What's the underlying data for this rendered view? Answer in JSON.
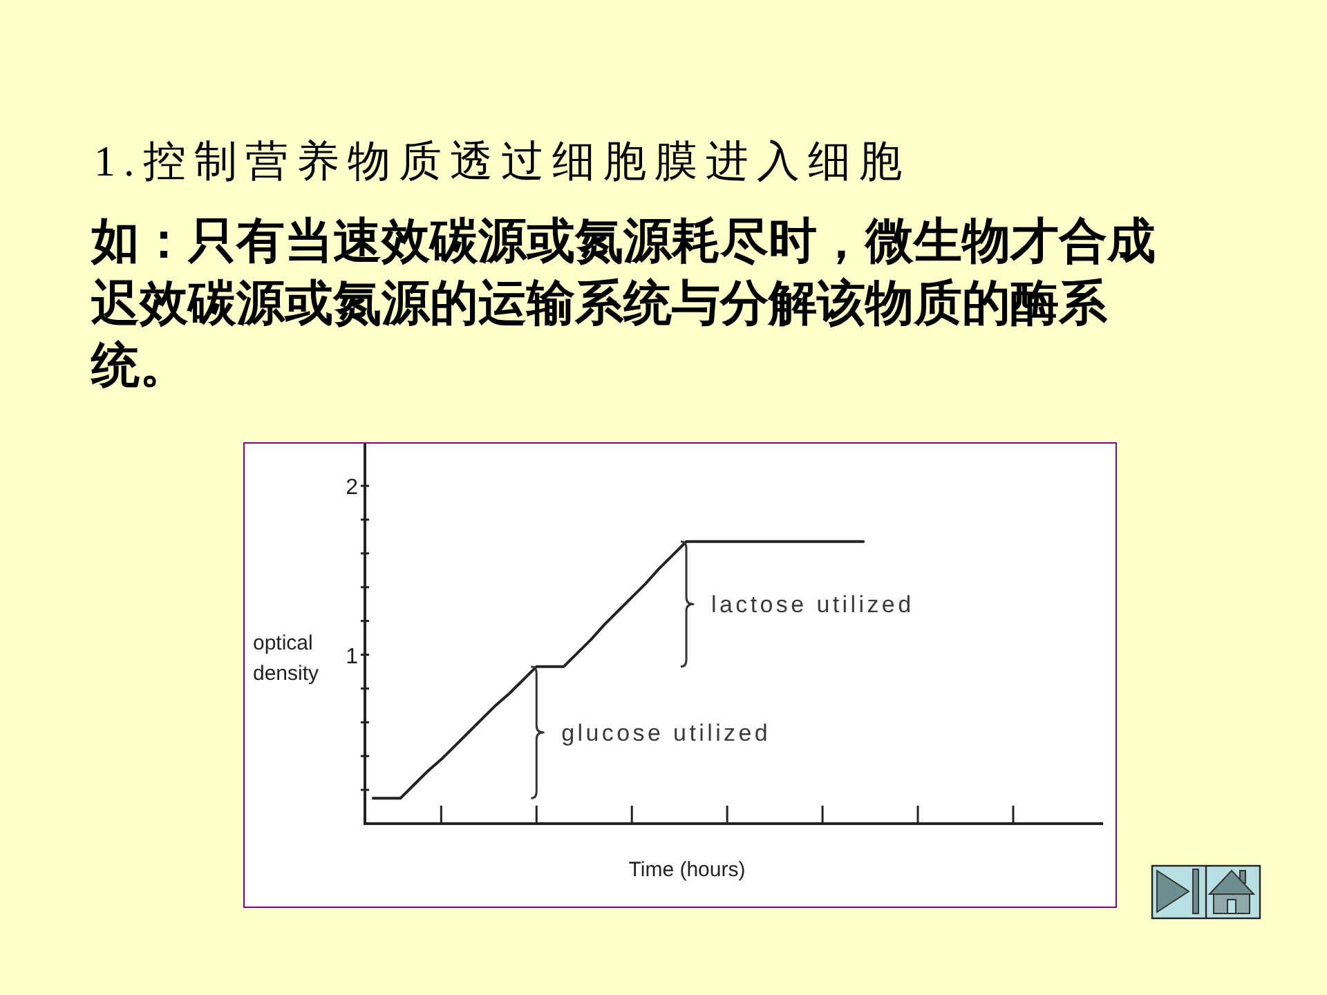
{
  "chart_data": {
    "type": "line",
    "title": "1.控制营养物质透过细胞膜进入细胞",
    "subtitle": "如：只有当速效碳源或氮源耗尽时，微生物才合成迟效碳源或氮源的运输系统与分解该物质的酶系统。",
    "xlabel": "Time (hours)",
    "ylabel": "optical density",
    "categories": [
      null,
      null,
      null,
      null,
      null,
      null,
      null,
      null,
      null,
      null,
      null,
      null,
      null,
      null,
      null,
      null,
      null,
      null,
      null,
      null,
      null,
      null,
      null,
      null,
      null,
      null,
      null,
      null,
      null,
      null,
      null,
      null,
      null,
      null,
      null,
      null,
      null,
      null,
      null,
      null,
      null,
      null,
      null,
      null,
      null,
      null,
      null,
      null,
      null,
      null,
      null,
      null,
      null,
      null
    ],
    "values": [
      0.15,
      0.15,
      0.15,
      0.23,
      0.31,
      0.38,
      0.46,
      0.54,
      0.62,
      0.7,
      0.77,
      0.85,
      0.93,
      0.93,
      0.93,
      1.01,
      1.09,
      1.18,
      1.26,
      1.34,
      1.42,
      1.51,
      1.59,
      1.67,
      1.67,
      1.67,
      1.67,
      1.67,
      1.67,
      1.67,
      1.67,
      1.67,
      1.67,
      1.67,
      1.67,
      1.67,
      1.67,
      null,
      null,
      null,
      null,
      null,
      null,
      null,
      null,
      null,
      null,
      null,
      null,
      null,
      null,
      null,
      null,
      null
    ],
    "color": "#222222",
    "line_style": "solid",
    "ylim": [
      0,
      2.25
    ],
    "yticks": [
      {
        "value": 0.2,
        "label": null
      },
      {
        "value": 0.4,
        "label": null
      },
      {
        "value": 0.6,
        "label": null
      },
      {
        "value": 0.8,
        "label": null
      },
      1,
      {
        "value": 1.2,
        "label": null
      },
      {
        "value": 1.4,
        "label": null
      },
      {
        "value": 1.6,
        "label": null
      },
      {
        "value": 1.8,
        "label": null
      },
      2
    ],
    "annotations": [
      "glucose utilized",
      "lactose utilized"
    ]
  }
}
